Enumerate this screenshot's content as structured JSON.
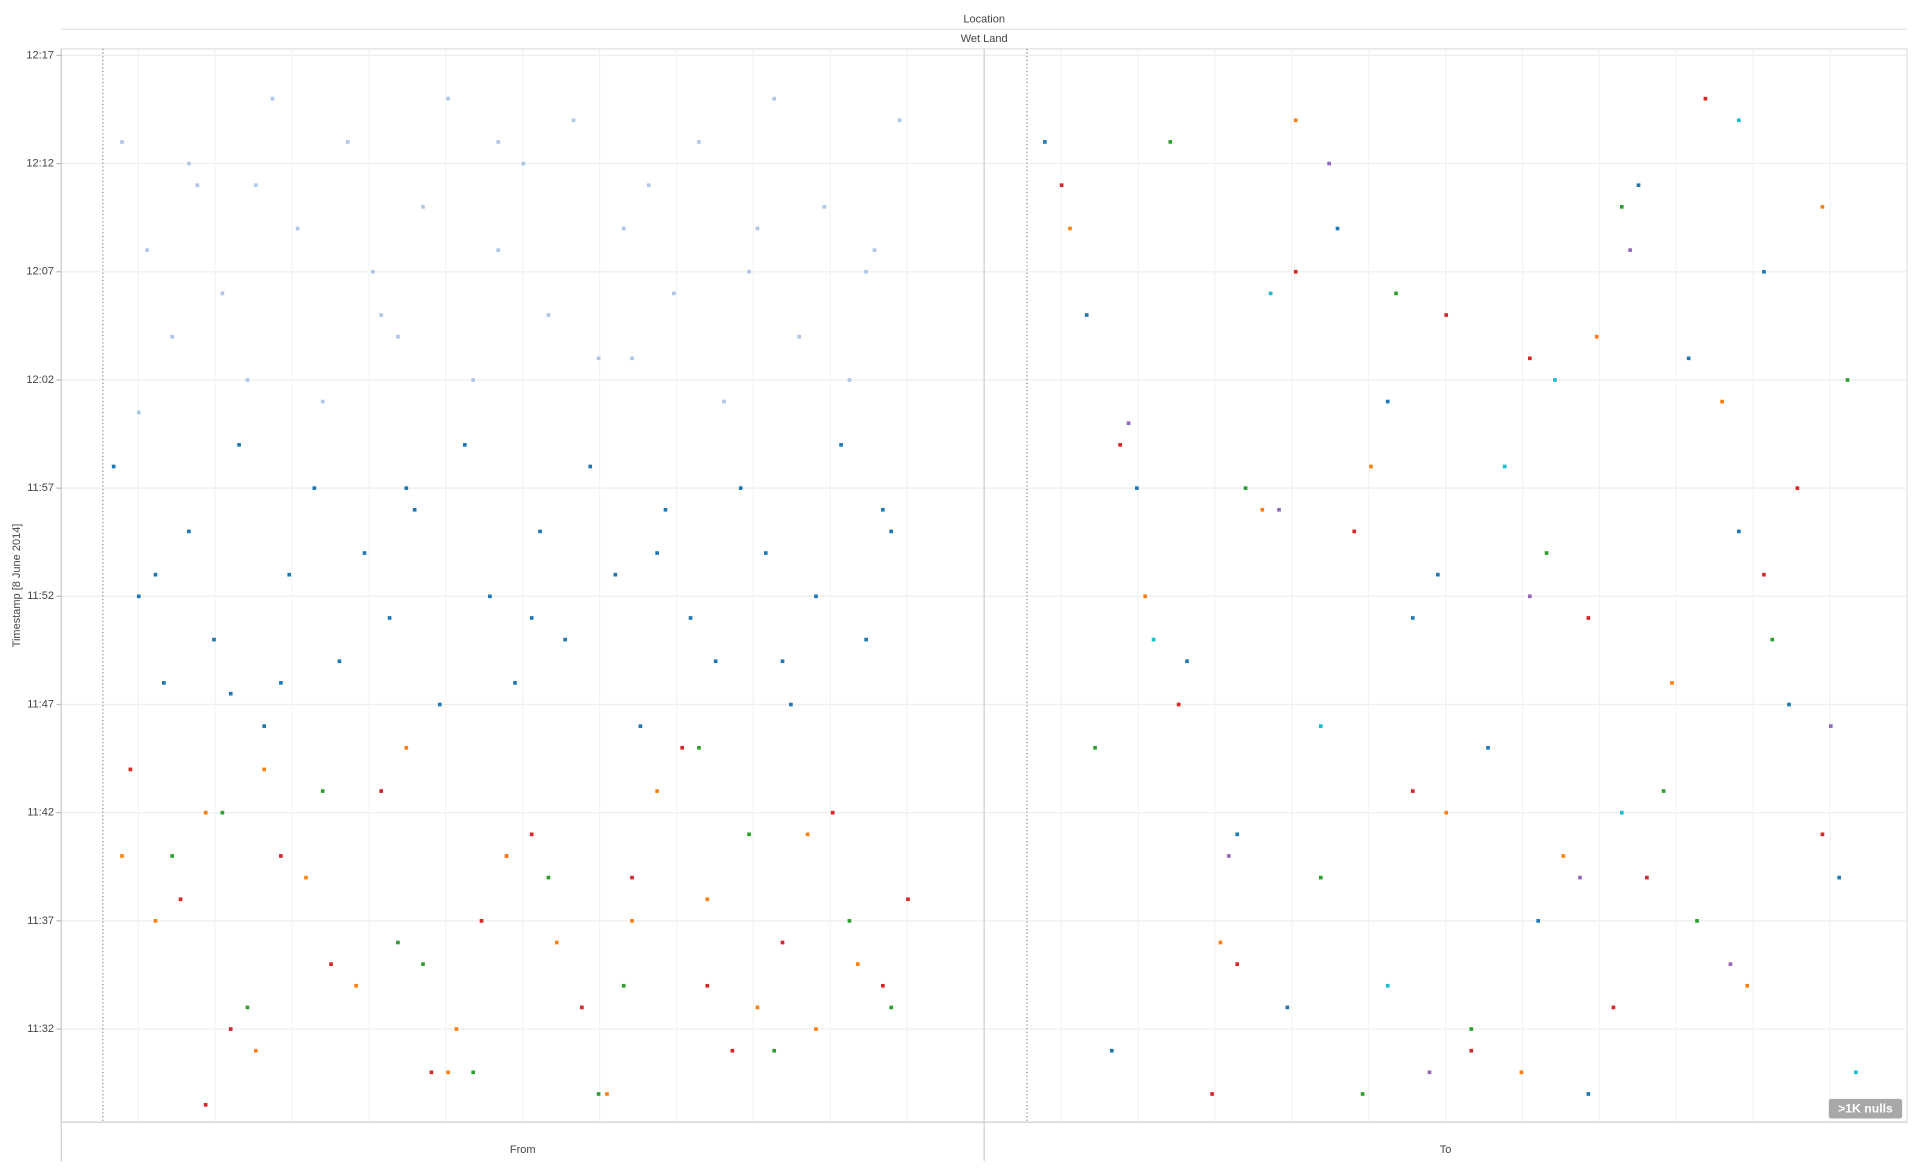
{
  "chart_data": {
    "type": "scatter",
    "title": "Location",
    "subtitle": "Wet Land",
    "y_label": "Timestamp [8 June 2014]",
    "ylim": [
      687.7,
      737.3
    ],
    "yticks": [
      {
        "value": 737,
        "label": "12:17"
      },
      {
        "value": 732,
        "label": "12:12"
      },
      {
        "value": 727,
        "label": "12:07"
      },
      {
        "value": 722,
        "label": "12:02"
      },
      {
        "value": 717,
        "label": "11:57"
      },
      {
        "value": 712,
        "label": "11:52"
      },
      {
        "value": 707,
        "label": "11:47"
      },
      {
        "value": 702,
        "label": "11:42"
      },
      {
        "value": 697,
        "label": "11:37"
      },
      {
        "value": 692,
        "label": "11:32"
      }
    ],
    "xlim": [
      0,
      100
    ],
    "grid": true,
    "annotation": ">1K nulls",
    "panels": [
      {
        "label": "From",
        "series": [
          {
            "color": "#aec7e8",
            "x": [
              2,
              5,
              8,
              11,
              14,
              17,
              20,
              23,
              26,
              29,
              32,
              35,
              38,
              41,
              44,
              47,
              50,
              53,
              56,
              59,
              62,
              65,
              68,
              71,
              74,
              77,
              80,
              83,
              86,
              89,
              92,
              95,
              4,
              18,
              33,
              47,
              63,
              78,
              91,
              10
            ],
            "values": [
              733,
              728,
              724,
              731,
              726,
              722,
              735,
              729,
              721,
              733,
              727,
              724,
              730,
              735,
              722,
              728,
              732,
              725,
              734,
              723,
              729,
              731,
              726,
              733,
              721,
              727,
              735,
              724,
              730,
              722,
              728,
              734,
              720.5,
              731,
              725,
              733,
              723,
              729,
              727,
              732
            ]
          },
          {
            "color": "#1f77b4",
            "x": [
              1,
              4,
              7,
              10,
              13,
              16,
              19,
              22,
              25,
              28,
              31,
              34,
              37,
              40,
              43,
              46,
              49,
              52,
              55,
              58,
              61,
              64,
              67,
              70,
              73,
              76,
              79,
              82,
              85,
              88,
              91,
              94,
              6,
              21,
              36,
              51,
              66,
              81,
              93,
              15
            ],
            "values": [
              718,
              712,
              708,
              715,
              710,
              719,
              706,
              713,
              717,
              709,
              714,
              711,
              716,
              707,
              719,
              712,
              708,
              715,
              710,
              718,
              713,
              706,
              716,
              711,
              709,
              717,
              714,
              707,
              712,
              719,
              710,
              715,
              713,
              708,
              717,
              711,
              714,
              709,
              716,
              707.5
            ]
          },
          {
            "color": "#d62728",
            "x": [
              3,
              9,
              15,
              21,
              27,
              33,
              39,
              45,
              51,
              57,
              63,
              69,
              75,
              81,
              87,
              93,
              12,
              48,
              72,
              96
            ],
            "values": [
              704,
              698,
              692,
              700,
              695,
              703,
              690,
              697,
              701,
              693,
              699,
              705,
              691,
              696,
              702,
              694,
              688.5,
              700,
              694,
              698
            ]
          },
          {
            "color": "#ff7f0e",
            "x": [
              6,
              12,
              18,
              24,
              30,
              36,
              42,
              48,
              54,
              60,
              66,
              72,
              78,
              84,
              90,
              19,
              41,
              63,
              85,
              2
            ],
            "values": [
              697,
              702,
              691,
              699,
              694,
              705,
              692,
              700,
              696,
              689,
              703,
              698,
              693,
              701,
              695,
              704,
              690,
              697,
              692,
              700
            ]
          },
          {
            "color": "#2ca02c",
            "x": [
              8,
              17,
              26,
              35,
              44,
              53,
              62,
              71,
              80,
              89,
              14,
              38,
              59,
              77,
              94
            ],
            "values": [
              700,
              693,
              703,
              696,
              690,
              699,
              694,
              705,
              691,
              697,
              702,
              695,
              689,
              701,
              693
            ]
          }
        ]
      },
      {
        "label": "To",
        "series": [
          {
            "color": "#1f77b4",
            "x": [
              2,
              7,
              13,
              19,
              25,
              31,
              37,
              43,
              49,
              55,
              61,
              67,
              73,
              79,
              85,
              91,
              97,
              10,
              46,
              88
            ],
            "values": [
              733,
              725,
              717,
              709,
              701,
              693,
              729,
              721,
              713,
              705,
              697,
              689,
              731,
              723,
              715,
              707,
              699,
              691,
              711,
              727
            ]
          },
          {
            "color": "#d62728",
            "x": [
              4,
              11,
              18,
              25,
              32,
              39,
              46,
              53,
              60,
              67,
              74,
              81,
              88,
              95,
              22,
              50,
              70,
              92
            ],
            "values": [
              731,
              719,
              707,
              695,
              727,
              715,
              703,
              691,
              723,
              711,
              699,
              735,
              713,
              701,
              689,
              725,
              693,
              717
            ]
          },
          {
            "color": "#ff7f0e",
            "x": [
              5,
              14,
              23,
              32,
              41,
              50,
              59,
              68,
              77,
              86,
              95,
              28,
              64,
              83
            ],
            "values": [
              729,
              712,
              696,
              734,
              718,
              702,
              690,
              724,
              708,
              694,
              730,
              716,
              700,
              721
            ]
          },
          {
            "color": "#2ca02c",
            "x": [
              8,
              17,
              26,
              35,
              44,
              53,
              62,
              71,
              80,
              89,
              98,
              40,
              76
            ],
            "values": [
              705,
              733,
              717,
              699,
              726,
              692,
              714,
              730,
              697,
              710,
              722,
              689,
              703
            ]
          },
          {
            "color": "#9467bd",
            "x": [
              12,
              24,
              36,
              48,
              60,
              72,
              84,
              96,
              30,
              66
            ],
            "values": [
              720,
              700,
              732,
              690,
              712,
              728,
              695,
              706,
              716,
              699
            ]
          },
          {
            "color": "#17becf",
            "x": [
              15,
              29,
              43,
              57,
              71,
              85,
              99,
              35,
              63
            ],
            "values": [
              710,
              726,
              694,
              718,
              702,
              734,
              690,
              706,
              722
            ]
          }
        ]
      }
    ]
  }
}
